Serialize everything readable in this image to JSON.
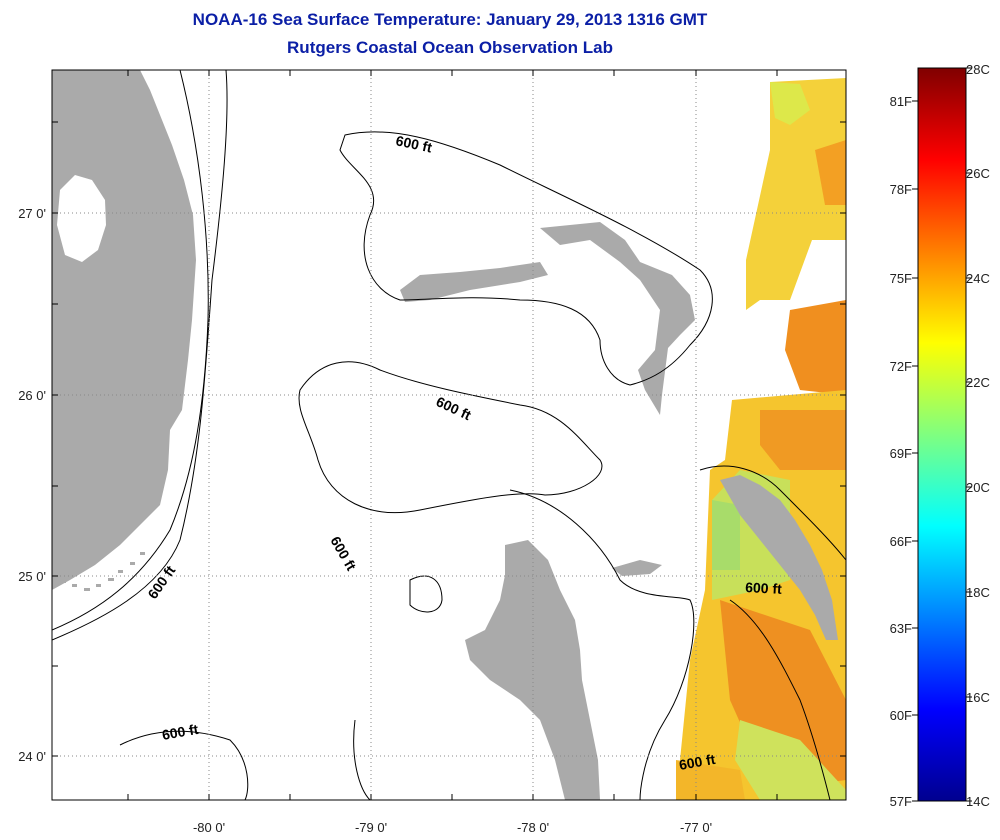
{
  "title": "NOAA-16 Sea Surface Temperature:  January 29, 2013 1316 GMT",
  "subtitle": "Rutgers Coastal Ocean Observation Lab",
  "map": {
    "lon_labels": [
      "-80 0'",
      "-79 0'",
      "-78 0'",
      "-77 0'"
    ],
    "lat_labels": [
      "27 0'",
      "26 0'",
      "25 0'",
      "24 0'"
    ],
    "contour_labels": [
      "600 ft",
      "600 ft",
      "600 ft",
      "600 ft",
      "600 ft",
      "600 ft"
    ],
    "grid": "dotted",
    "colors": {
      "land": "#aaaaaa",
      "background": "#ffffff",
      "contour": "#000000"
    }
  },
  "colorbar": {
    "celsius": [
      "28C",
      "26C",
      "24C",
      "22C",
      "20C",
      "18C",
      "16C",
      "14C"
    ],
    "fahrenheit": [
      "81F",
      "78F",
      "75F",
      "72F",
      "69F",
      "66F",
      "63F",
      "60F",
      "57F"
    ],
    "range_c": [
      14,
      28
    ],
    "colormap": "jet"
  }
}
